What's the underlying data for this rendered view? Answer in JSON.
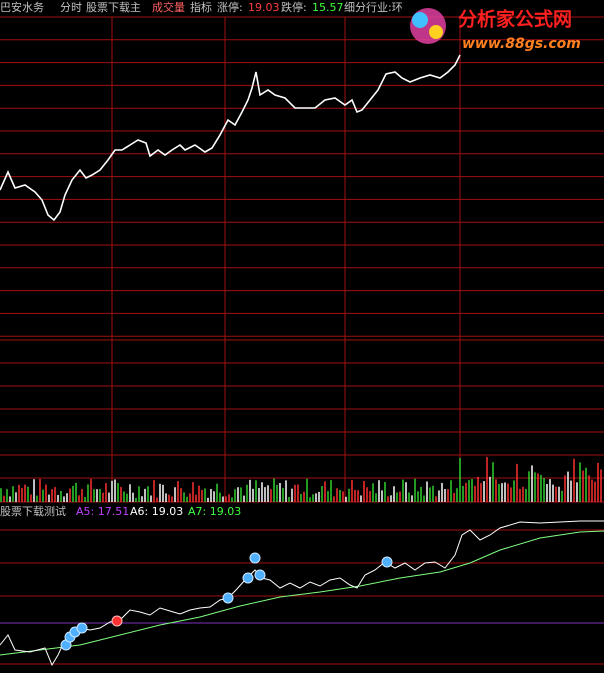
{
  "header": {
    "stock": "巴安水务",
    "items": [
      "分时",
      "股票下载主",
      "成交量",
      "指标"
    ],
    "limit_up_label": "涨停:",
    "limit_up": "19.03",
    "limit_down_label": "跌停:",
    "limit_down": "15.57",
    "industry": "细分行业:环"
  },
  "watermark": {
    "title": "分析家公式网",
    "url": "www.88gs.com"
  },
  "indicator": {
    "name": "股票下载测试",
    "a5": "A5: 17.51",
    "a6": "A6: 19.03",
    "a7": "A7: 19.03"
  }
}
